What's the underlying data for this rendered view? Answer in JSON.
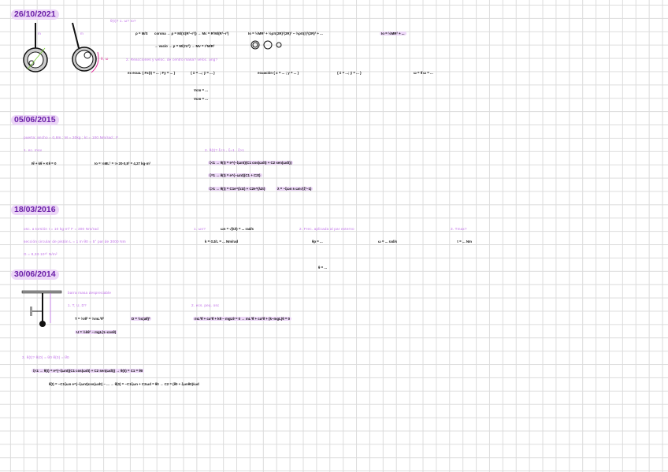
{
  "sections": [
    {
      "date": "26/10/2021",
      "questions": [
        "θ(t)?  1. ω?  Io?",
        "2. Reacciones y veloc. de centro masa?  veloc. ang?"
      ],
      "math": [
        "ρ = M/S",
        "corona → ρ = M/(π(R²−r²)) → Mc = R²M/(R²−r²)",
        "→ vacío → ρ = M/(πr²) → Mv = r²M/R²",
        "Io = ½MR² + ½ρπ(2R)²(2R)² − ½ρπ(r)²(2R)² + ... ",
        "Io = ½MR² + ...",
        "ex ecua. { Fx(t) = ... ; Fy = ... }",
        "{ ẋ = ...; ẏ = ... }",
        "ecuación { x = ... ; y = ... }",
        "{ ẋ = ...; ẏ = ... }",
        "ω = θ̇   ω = ...",
        "Vcm = ...",
        "Vcm = ..."
      ],
      "labels": [
        "m",
        "m",
        "θ, ω"
      ]
    },
    {
      "date": "05/06/2015",
      "questions": [
        "puerta: ancho = 0,8m ; M = 20kg ; kt = 100 Nm/rad ; F",
        "1. ec. mov",
        "2. θ(t)?  ξ<1 , ξ=1 , ξ>1"
      ],
      "math": [
        "Iθ̈ + kθ̇ + Kθ = 0",
        "Io = ⅓ML² = ⅓·20·0,8² = 4,27 kg·m²",
        "ξ<1 → θ(t) = e^(−ξωnt)(C1 cos(ωdt) + C2 sen(ωdt))",
        "ξ=1 → θ(t) = e^(−ωnt)(C1 + C2t)",
        "ξ>1 → θ(t) = C1e^(λ1t) + C2e^(λ2t)",
        "λ = −ξωn ± ωn√(ξ²−1)"
      ]
    },
    {
      "date": "18/03/2016",
      "questions": [
        "osc. a torsión   I = 10 kg·m²   F = 300 Nm/rad",
        "sección circular de pistón  L = 1 m   θ0 = 5°   par de 3000 Nm",
        "G = 8,33·10¹⁰ N/m²",
        "1. ωn?",
        "2. Frec. aplicada al par externo",
        "3. Tmax?"
      ],
      "math": [
        "ωn = √(k/I) = ... rad/s",
        "k = GJ/L = ... Nm/rad",
        "θp = ...",
        "ω = ... rad/s",
        "θ = ... ",
        "τ = ... Nm"
      ]
    },
    {
      "date": "30/06/2014",
      "questions": [
        "barra masa despreciable",
        "1. T, U, D?",
        "2. ecs. peq. osc",
        "3. θ(t)?   θ(0) = θ0   θ̇(0) = θ̇0"
      ],
      "math": [
        "T = ½Iθ̇² = ½mL²θ̇²",
        "D = ½c(aθ̇)²",
        "U = ½kθ² − mgL(1−cosθ)",
        "mL²θ̈ + ca²θ̇ + kθ − mgLθ = 0 → mL²θ̈ + ca²θ̇ + (k−mgL)θ = 0",
        "ξ<1 → θ(t) = e^(−ξωnt)(C1 cos(ωdt) + C2 sen(ωdt)) → θ(0) = C1 = θ0",
        "θ̇(t) = −C1ξωn e^(−ξωnt)cos(ωdt) − ... → θ̇(0) = −C1ξωn + C2ωd = θ̇0 → C2 = (θ̇0 + ξωnθ0)/ωd"
      ]
    }
  ],
  "colors": {
    "heading": "#6a1fa8",
    "highlight": "#ecd6f7",
    "question": "#c070e8",
    "accent": "#e0309a",
    "grid": "#dcdcdc"
  }
}
